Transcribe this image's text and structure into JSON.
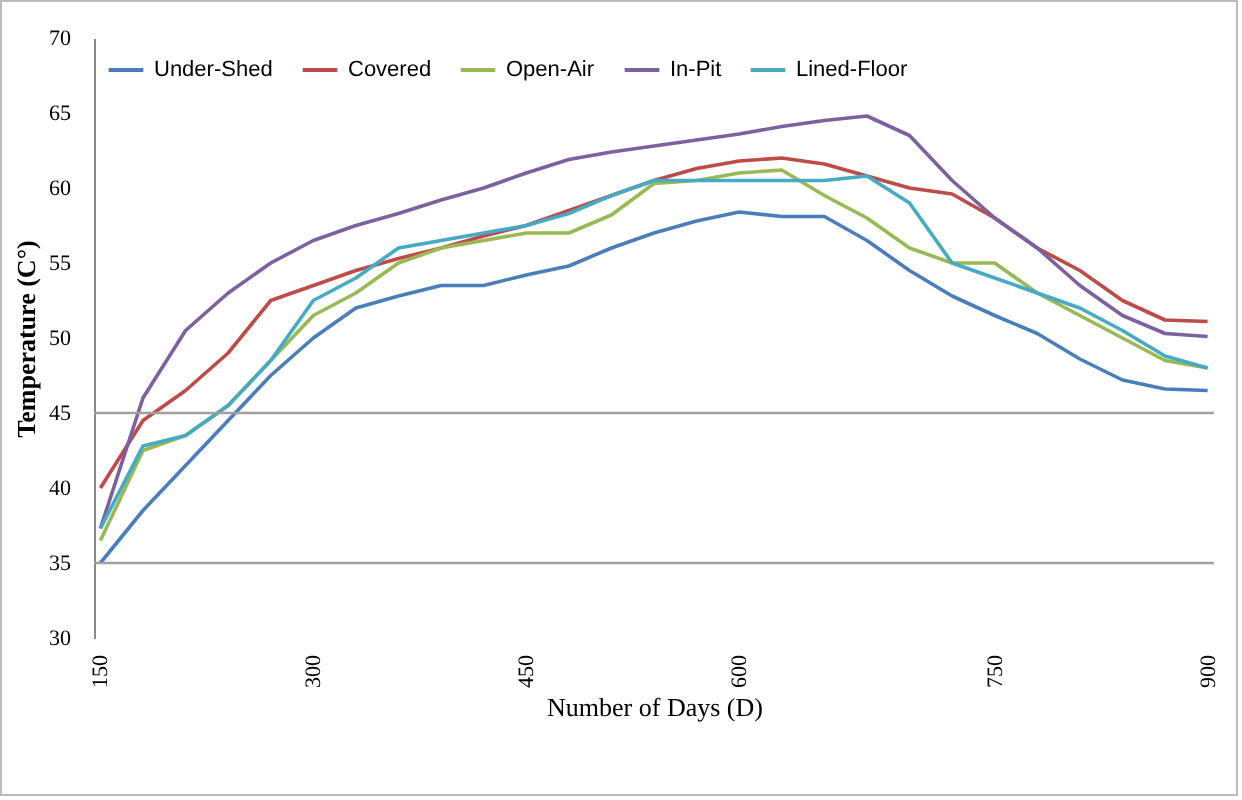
{
  "chart_data": {
    "type": "line",
    "xlabel": "Number of Days (D)",
    "ylabel": "Temperature (C°)",
    "categories": [
      "150",
      null,
      null,
      null,
      null,
      "300",
      null,
      null,
      null,
      null,
      "450",
      null,
      null,
      null,
      null,
      "600",
      null,
      null,
      null,
      null,
      null,
      "750",
      null,
      null,
      null,
      null,
      "900"
    ],
    "ylim": [
      30,
      70
    ],
    "yticks": [
      30,
      35,
      40,
      45,
      50,
      55,
      60,
      65,
      70
    ],
    "ref_lines": [
      {
        "axis": "y",
        "value": 35,
        "label": null,
        "color": "#a0a0a0"
      },
      {
        "axis": "y",
        "value": 45,
        "label": null,
        "color": "#a0a0a0"
      }
    ],
    "legend": "top left",
    "line_style": "solid",
    "marker": "none",
    "series": [
      {
        "name": "Under-Shed",
        "color": "#4a7ebb",
        "values": [
          35,
          38.5,
          41.5,
          44.5,
          47.5,
          50,
          52,
          52.8,
          53.5,
          53.5,
          54.2,
          54.8,
          56,
          57,
          57.8,
          58.4,
          58.1,
          58.1,
          56.5,
          54.5,
          52.8,
          51.5,
          50.3,
          48.6,
          47.2,
          46.6,
          46.5
        ]
      },
      {
        "name": "Covered",
        "color": "#be4b48",
        "values": [
          40,
          44.5,
          46.5,
          49,
          52.5,
          53.5,
          54.5,
          55.3,
          56,
          56.8,
          57.5,
          58.5,
          59.5,
          60.5,
          61.3,
          61.8,
          62,
          61.6,
          60.8,
          60,
          59.6,
          58,
          56,
          54.5,
          52.5,
          51.2,
          51.1
        ]
      },
      {
        "name": "Open-Air",
        "color": "#98b954",
        "values": [
          36.5,
          42.5,
          43.5,
          45.5,
          48.5,
          51.5,
          53,
          55,
          56,
          56.5,
          57,
          57,
          58.2,
          60.3,
          60.5,
          61,
          61.2,
          59.5,
          58,
          56,
          55,
          55,
          53,
          51.5,
          50,
          48.5,
          48
        ]
      },
      {
        "name": "In-Pit",
        "color": "#7d60a0",
        "values": [
          37.3,
          46,
          50.5,
          53,
          55,
          56.5,
          57.5,
          58.3,
          59.2,
          60,
          61,
          61.9,
          62.4,
          62.8,
          63.2,
          63.6,
          64.1,
          64.5,
          64.8,
          63.5,
          60.5,
          58,
          56,
          53.5,
          51.5,
          50.3,
          50.1
        ]
      },
      {
        "name": "Lined-Floor",
        "color": "#46aac5",
        "values": [
          37.3,
          42.8,
          43.5,
          45.5,
          48.5,
          52.5,
          54,
          56,
          56.5,
          57,
          57.5,
          58.3,
          59.5,
          60.5,
          60.5,
          60.5,
          60.5,
          60.5,
          60.8,
          59,
          55,
          54,
          53,
          52,
          50.5,
          48.8,
          48
        ]
      }
    ]
  }
}
